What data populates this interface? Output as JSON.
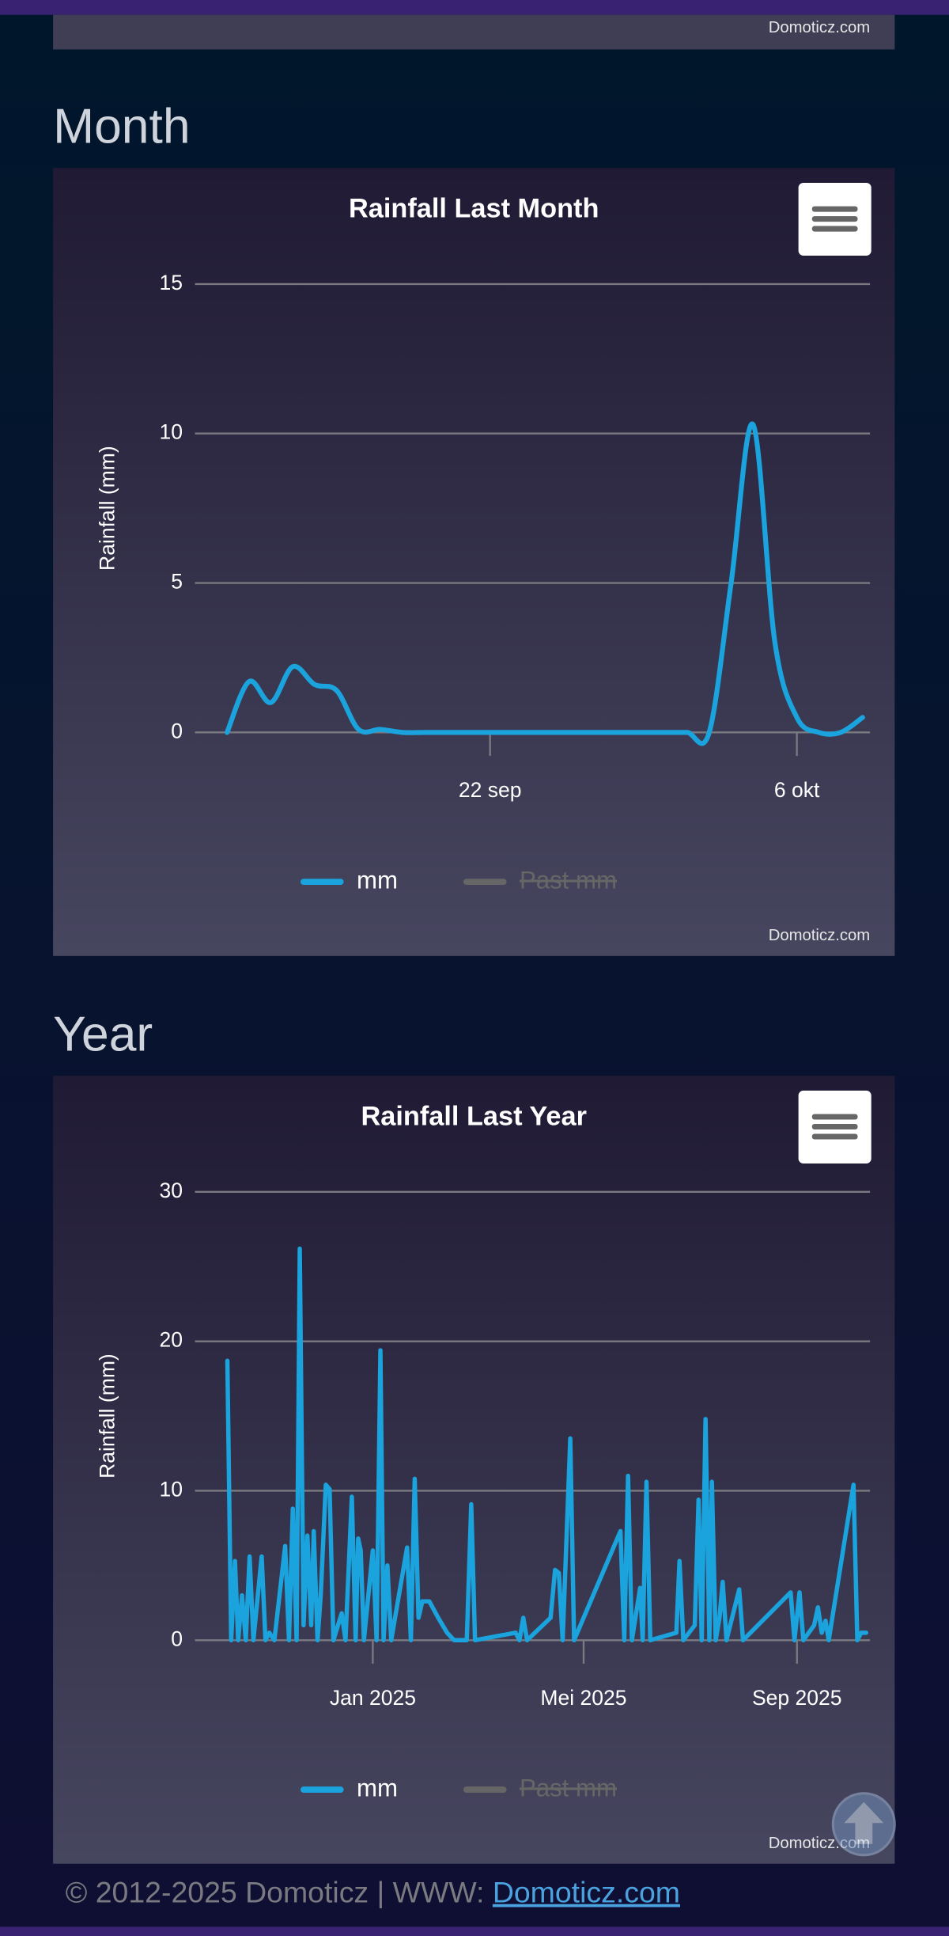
{
  "headings": {
    "month": "Month",
    "year": "Year"
  },
  "credit": "Domoticz.com",
  "footer": {
    "text": "© 2012-2025 Domoticz | WWW: ",
    "link": "Domoticz.com"
  },
  "chart_data": [
    {
      "type": "line",
      "title": "Rainfall Last Month",
      "y_label": "Rainfall (mm)",
      "x": [
        "10 sep",
        "11 sep",
        "12 sep",
        "13 sep",
        "14 sep",
        "15 sep",
        "16 sep",
        "17 sep",
        "18 sep",
        "19 sep",
        "20 sep",
        "21 sep",
        "22 sep",
        "23 sep",
        "24 sep",
        "25 sep",
        "26 sep",
        "27 sep",
        "28 sep",
        "29 sep",
        "30 sep",
        "1 okt",
        "2 okt",
        "3 okt",
        "4 okt",
        "5 okt",
        "6 okt",
        "7 okt",
        "8 okt",
        "9 okt"
      ],
      "xticks": [
        "22 sep",
        "6 okt"
      ],
      "ylim": [
        0,
        15
      ],
      "yticks": [
        0,
        5,
        10,
        15
      ],
      "grid": true,
      "series": [
        {
          "name": "mm",
          "color": "#1aa3dd",
          "values": [
            0,
            1.7,
            1.0,
            2.2,
            1.6,
            1.4,
            0.1,
            0.1,
            0,
            0,
            0,
            0,
            0,
            0,
            0,
            0,
            0,
            0,
            0,
            0,
            0,
            0,
            0,
            5,
            10.3,
            3,
            0.5,
            0,
            0,
            0.5
          ]
        },
        {
          "name": "Past mm",
          "color": "#666666",
          "visible": false
        }
      ]
    },
    {
      "type": "line",
      "title": "Rainfall Last Year",
      "y_label": "Rainfall (mm)",
      "x": [
        2024.771,
        2024.777,
        2024.783,
        2024.788,
        2024.794,
        2024.8,
        2024.806,
        2024.812,
        2024.825,
        2024.831,
        2024.837,
        2024.845,
        2024.862,
        2024.868,
        2024.874,
        2024.88,
        2024.885,
        2024.891,
        2024.897,
        2024.903,
        2024.907,
        2024.913,
        2024.918,
        2024.926,
        2024.932,
        2024.938,
        2024.951,
        2024.957,
        2024.967,
        2024.973,
        2024.977,
        2024.981,
        2024.986,
        2025.0,
        2025.006,
        2025.012,
        2025.017,
        2025.023,
        2025.029,
        2025.054,
        2025.06,
        2025.066,
        2025.072,
        2025.078,
        2025.089,
        2025.103,
        2025.117,
        2025.128,
        2025.148,
        2025.155,
        2025.161,
        2025.225,
        2025.231,
        2025.237,
        2025.243,
        2025.28,
        2025.287,
        2025.293,
        2025.299,
        2025.311,
        2025.317,
        2025.39,
        2025.396,
        2025.402,
        2025.408,
        2025.421,
        2025.425,
        2025.431,
        2025.437,
        2025.478,
        2025.483,
        2025.489,
        2025.507,
        2025.513,
        2025.518,
        2025.524,
        2025.53,
        2025.534,
        2025.54,
        2025.546,
        2025.551,
        2025.557,
        2025.577,
        2025.583,
        2025.658,
        2025.664,
        2025.672,
        2025.678,
        2025.695,
        2025.701,
        2025.707,
        2025.713,
        2025.718,
        2025.757,
        2025.763,
        2025.769,
        2025.777
      ],
      "xlim": [
        2024.72,
        2025.783
      ],
      "xticks": [
        {
          "value": 2025,
          "label": "Jan 2025"
        },
        {
          "value": 2025.332,
          "label": "Mei 2025"
        },
        {
          "value": 2025.668,
          "label": "Sep 2025"
        }
      ],
      "ylim": [
        0,
        30
      ],
      "yticks": [
        0,
        10,
        20,
        30
      ],
      "grid": true,
      "series": [
        {
          "name": "mm",
          "color": "#1aa3dd",
          "values": [
            18.7,
            0,
            5.3,
            0,
            3,
            0,
            5.6,
            0,
            5.6,
            0,
            0.5,
            0,
            6.3,
            0,
            8.8,
            0,
            26.2,
            1,
            7,
            1,
            7.3,
            0,
            3,
            10.4,
            10.1,
            0,
            1.8,
            0,
            9.6,
            0,
            6.8,
            6,
            0,
            6,
            0,
            19.4,
            0,
            5,
            0,
            6.2,
            0,
            10.8,
            1.5,
            2.6,
            2.6,
            1.5,
            0.5,
            0,
            0,
            9.1,
            0,
            0.5,
            0,
            1.5,
            0,
            1.5,
            4.7,
            4.5,
            0,
            13.5,
            0,
            7.3,
            0,
            11,
            0,
            3.5,
            0,
            10.6,
            0,
            0.5,
            5.3,
            0,
            1,
            9.4,
            0,
            14.8,
            0,
            10.6,
            0,
            1.5,
            3.9,
            0,
            3.4,
            0,
            3.2,
            0,
            3.2,
            0,
            1,
            2.2,
            0.5,
            1.3,
            0,
            10.4,
            0,
            0.5,
            0.5
          ]
        },
        {
          "name": "Past mm",
          "color": "#666666",
          "visible": false
        }
      ]
    }
  ]
}
